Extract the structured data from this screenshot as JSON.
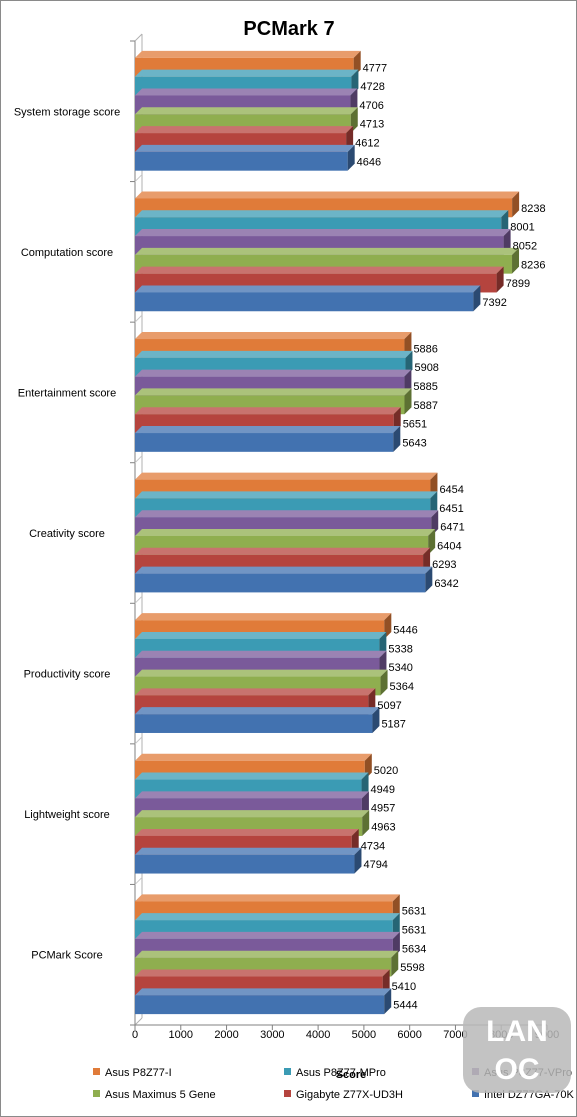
{
  "chart_data": {
    "type": "bar",
    "orientation": "horizontal",
    "style": "3d-clustered",
    "title": "PCMark 7",
    "xlabel": "Score",
    "ylabel": "",
    "xlim": [
      0,
      9000
    ],
    "xticks": [
      0,
      1000,
      2000,
      3000,
      4000,
      5000,
      6000,
      7000,
      8000,
      9000
    ],
    "grid": false,
    "legend_position": "bottom",
    "categories": [
      "System storage score",
      "Computation score",
      "Entertainment score",
      "Creativity score",
      "Productivity score",
      "Lightweight score",
      "PCMark Score"
    ],
    "series": [
      {
        "name": "Asus P8Z77-I",
        "color": "#e07b39",
        "values": [
          4777,
          8238,
          5886,
          6454,
          5446,
          5020,
          5631
        ]
      },
      {
        "name": "Asus P8Z77-MPro",
        "color": "#3b9bb4",
        "values": [
          4728,
          8001,
          5908,
          6451,
          5338,
          4949,
          5631
        ]
      },
      {
        "name": "Asus P8Z77-VPro",
        "color": "#7a5a9a",
        "values": [
          4706,
          8052,
          5885,
          6471,
          5340,
          4957,
          5634
        ]
      },
      {
        "name": "Asus Maximus 5 Gene",
        "color": "#8fae4f",
        "values": [
          4713,
          8236,
          5887,
          6404,
          5364,
          4963,
          5598
        ]
      },
      {
        "name": "Gigabyte Z77X-UD3H",
        "color": "#b5443e",
        "values": [
          4612,
          7899,
          5651,
          6293,
          5097,
          4734,
          5410
        ]
      },
      {
        "name": "Intel DZ77GA-70K",
        "color": "#4272b0",
        "values": [
          4646,
          7392,
          5643,
          6342,
          5187,
          4794,
          5444
        ]
      }
    ]
  },
  "watermark": {
    "lines": [
      "LAN",
      "OC"
    ],
    "color": "#b8b8b8"
  }
}
